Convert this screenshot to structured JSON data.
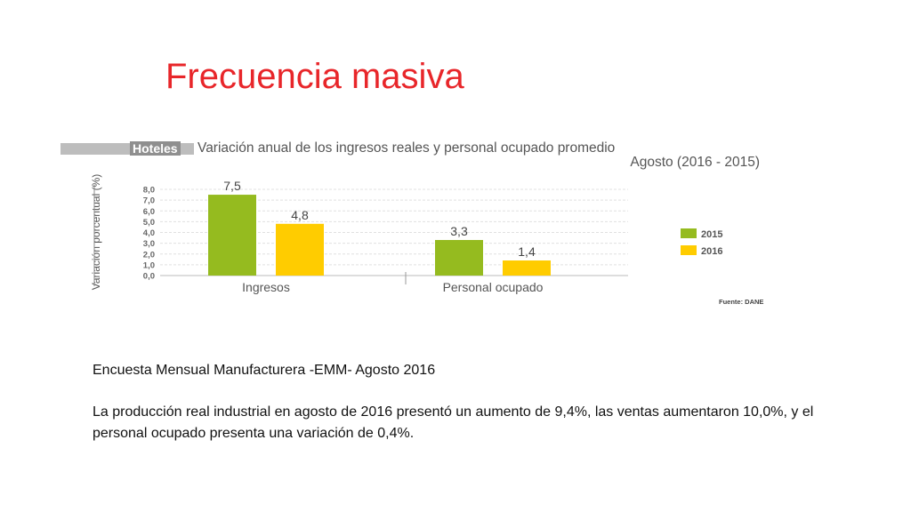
{
  "slide": {
    "title": "Frecuencia masiva",
    "survey_title": "Encuesta Mensual Manufacturera -EMM- Agosto 2016",
    "summary": "La producción real industrial en agosto de 2016 presentó un aumento de 9,4%, las ventas aumentaron 10,0%, y el personal ocupado presenta una variación de 0,4%."
  },
  "chart_header": {
    "tag": "Hoteles",
    "title": "Variación anual de los ingresos reales y personal ocupado promedio",
    "subtitle": "Agosto (2016 - 2015)"
  },
  "chart_data": {
    "type": "bar",
    "categories": [
      "Ingresos",
      "Personal ocupado"
    ],
    "series": [
      {
        "name": "2015",
        "values": [
          7.5,
          3.3
        ],
        "labels": [
          "7,5",
          "3,3"
        ],
        "color": "#95bb1f"
      },
      {
        "name": "2016",
        "values": [
          4.8,
          1.4
        ],
        "labels": [
          "4,8",
          "1,4"
        ],
        "color": "#ffcc00"
      }
    ],
    "ylabel": "Variación porcentual (%)",
    "ylim": [
      0,
      8
    ],
    "yticks": [
      0,
      1,
      2,
      3,
      4,
      5,
      6,
      7,
      8
    ],
    "ytick_labels": [
      "0,0",
      "1,0",
      "2,0",
      "3,0",
      "4,0",
      "5,0",
      "6,0",
      "7,0",
      "8,0"
    ],
    "grid": true,
    "legend_position": "right",
    "source": "Fuente: DANE"
  }
}
